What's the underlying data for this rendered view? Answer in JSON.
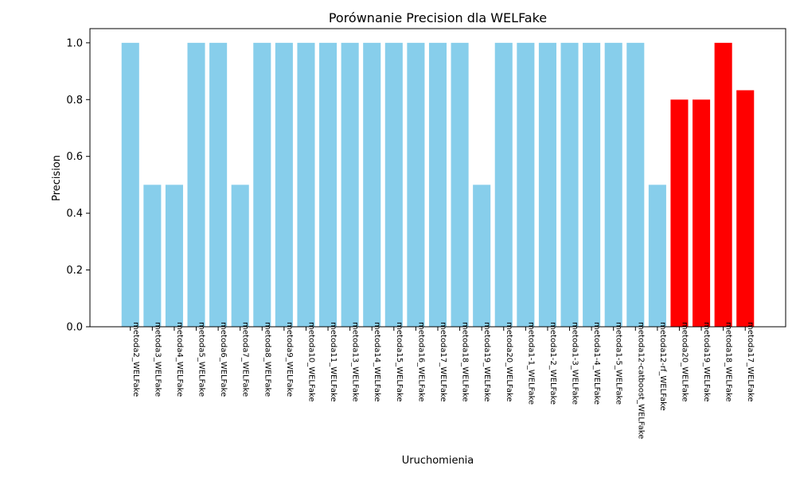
{
  "chart_data": {
    "type": "bar",
    "title": "Porównanie Precision dla WELFake",
    "xlabel": "Uruchomienia",
    "ylabel": "Precision",
    "ylim": [
      0,
      1.05
    ],
    "yticks": [
      "0.0",
      "0.2",
      "0.4",
      "0.6",
      "0.8",
      "1.0"
    ],
    "grid": false,
    "colors": {
      "default": "#87ceeb",
      "highlight": "#ff0000"
    },
    "categories": [
      "metoda2_WELFake",
      "metoda3_WELFake",
      "metoda4_WELFake",
      "metoda5_WELFake",
      "metoda6_WELFake",
      "metoda7_WELFake",
      "metoda8_WELFake",
      "metoda9_WELFake",
      "metoda10_WELFake",
      "metoda11_WELFake",
      "metoda13_WELFake",
      "metoda14_WELFake",
      "metoda15_WELFake",
      "metoda16_WELFake",
      "metoda17_WELFake",
      "metoda18_WELFake",
      "metoda19_WELFake",
      "metoda20_WELFake",
      "metoda1-1_WELFake",
      "metoda1-2_WELFake",
      "metoda1-3_WELFake",
      "metoda1-4_WELFake",
      "metoda1-5_WELFake",
      "metoda12-catboost_WELFake",
      "metoda12-rf_WELFake",
      "metoda20_WELFake",
      "metoda19_WELFake",
      "metoda18_WELFake",
      "metoda17_WELFake"
    ],
    "values": [
      1.0,
      0.5,
      0.5,
      1.0,
      1.0,
      0.5,
      1.0,
      1.0,
      1.0,
      1.0,
      1.0,
      1.0,
      1.0,
      1.0,
      1.0,
      1.0,
      0.5,
      1.0,
      1.0,
      1.0,
      1.0,
      1.0,
      1.0,
      1.0,
      0.5,
      0.8,
      0.8,
      1.0,
      0.833
    ],
    "bar_colors": [
      "#87ceeb",
      "#87ceeb",
      "#87ceeb",
      "#87ceeb",
      "#87ceeb",
      "#87ceeb",
      "#87ceeb",
      "#87ceeb",
      "#87ceeb",
      "#87ceeb",
      "#87ceeb",
      "#87ceeb",
      "#87ceeb",
      "#87ceeb",
      "#87ceeb",
      "#87ceeb",
      "#87ceeb",
      "#87ceeb",
      "#87ceeb",
      "#87ceeb",
      "#87ceeb",
      "#87ceeb",
      "#87ceeb",
      "#87ceeb",
      "#87ceeb",
      "#ff0000",
      "#ff0000",
      "#ff0000",
      "#ff0000"
    ]
  }
}
